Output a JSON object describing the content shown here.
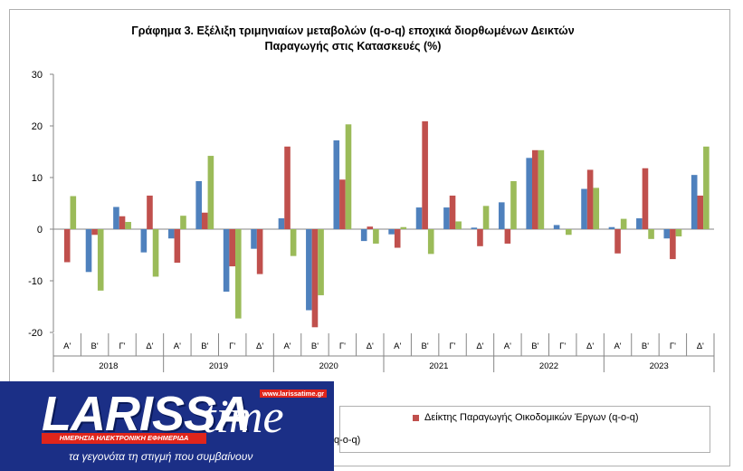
{
  "chart_data": {
    "type": "bar",
    "title_line1": "Γράφημα 3. Εξέλιξη τριμηνιαίων μεταβολών (q-o-q) εποχικά διορθωμένων Δεικτών",
    "title_line2": "Παραγωγής στις Κατασκευές (%)",
    "ylim": [
      -20,
      30
    ],
    "yticks": [
      "30",
      "20",
      "10",
      "0",
      "-10",
      "-20"
    ],
    "ytick_values": [
      30,
      20,
      10,
      0,
      -10,
      -20
    ],
    "grid": false,
    "quarters": [
      "Α'",
      "Β'",
      "Γ'",
      "Δ'",
      "Α'",
      "Β'",
      "Γ'",
      "Δ'",
      "Α'",
      "Β'",
      "Γ'",
      "Δ'",
      "Α'",
      "Β'",
      "Γ'",
      "Δ'",
      "Α'",
      "Β'",
      "Γ'",
      "Δ'",
      "Α'",
      "Β'",
      "Γ'",
      "Δ'"
    ],
    "years": [
      "2018",
      "2019",
      "2020",
      "2021",
      "2022",
      "2023"
    ],
    "series": [
      {
        "color": "#4f81bd",
        "values": [
          0.0,
          -8.3,
          4.3,
          -4.5,
          -1.8,
          9.3,
          -12.1,
          -3.8,
          2.1,
          -15.7,
          17.2,
          -2.3,
          -1.0,
          4.2,
          4.2,
          0.3,
          5.2,
          13.8,
          0.8,
          7.8,
          0.4,
          2.1,
          -1.8,
          10.5
        ]
      },
      {
        "name": "Δείκτης Παραγωγής Οικοδομικών Έργων (q-o-q)",
        "color": "#c0504d",
        "values": [
          -6.4,
          -1.1,
          2.5,
          6.5,
          -6.5,
          3.2,
          -7.2,
          -8.7,
          16.0,
          -19.0,
          9.6,
          0.5,
          -3.6,
          20.9,
          6.5,
          -3.3,
          -2.8,
          15.3,
          0.0,
          11.5,
          -4.7,
          11.8,
          -5.8,
          6.5
        ]
      },
      {
        "color": "#9bbb59",
        "values": [
          6.4,
          -11.9,
          1.4,
          -9.2,
          2.6,
          14.2,
          -17.3,
          0.0,
          -5.2,
          -12.8,
          20.3,
          -2.8,
          0.4,
          -4.8,
          1.5,
          4.5,
          9.3,
          15.3,
          -1.1,
          8.0,
          2.0,
          -1.9,
          -1.4,
          16.0
        ]
      }
    ]
  },
  "legend": {
    "entry_red": "Δείκτης Παραγωγής Οικοδομικών Έργων (q-o-q)",
    "partial_text": "q-o-q)"
  },
  "logo": {
    "word1": "LARISSA",
    "word2": "time",
    "url": "www.larissatime.gr",
    "strip": "ΗΜΕΡΗΣΙΑ ΗΛΕΚΤΡΟΝΙΚΗ ΕΦΗΜΕΡΙΔΑ",
    "tagline": "τα γεγονότα τη στιγμή που συμβαίνουν"
  },
  "colors": {
    "logo_blue": "#1b2f86",
    "logo_red": "#e0251b"
  }
}
